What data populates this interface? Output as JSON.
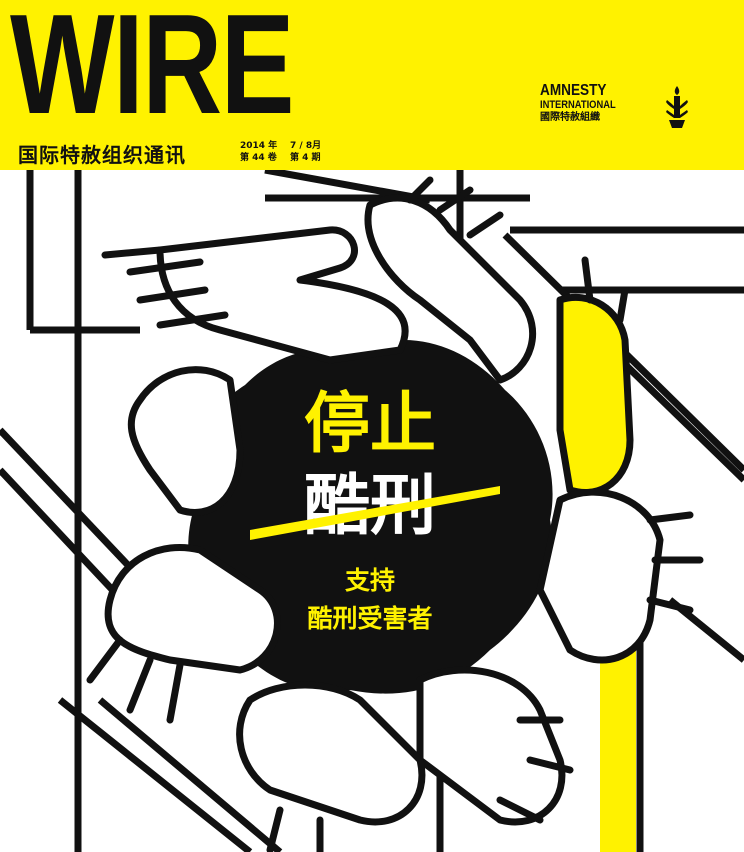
{
  "masthead": "WIRE",
  "subtitle": "国际特赦组织通讯",
  "issue": {
    "year": "2014 年",
    "months": "7 / 8月",
    "volume": "第 44 卷",
    "number": "第 4 期"
  },
  "organization": {
    "line1": "AMNESTY",
    "line2": "INTERNATIONAL",
    "line3": "國際特赦組織"
  },
  "cover": {
    "headline_top": "停止",
    "headline_bottom": "酷刑",
    "tagline_1": "支持",
    "tagline_2": "酷刑受害者"
  },
  "colors": {
    "brand_yellow": "#fff200",
    "ink": "#111111",
    "paper": "#ffffff"
  },
  "icons": {
    "logo": "amnesty-candle-icon"
  }
}
